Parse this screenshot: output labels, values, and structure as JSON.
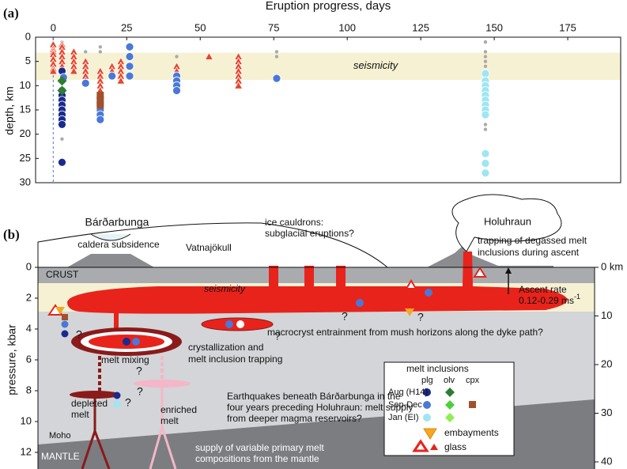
{
  "chart_data": {
    "type": "scatter",
    "panel_label": "(a)",
    "x_label": "Eruption progress, days",
    "y_label": "depth, km",
    "xlim": [
      -6,
      193
    ],
    "xticks": [
      0,
      25,
      50,
      75,
      100,
      125,
      150,
      175
    ],
    "ylim": [
      0,
      30
    ],
    "invert_y": true,
    "yticks": [
      0,
      5,
      10,
      15,
      20,
      25,
      30
    ],
    "band": {
      "label": "seismicity",
      "range": [
        3.2,
        8.8
      ],
      "color": "#f5f1d2"
    },
    "series": [
      {
        "marker": "dot",
        "color": "#aaaaaa",
        "x": [
          3,
          3,
          3,
          11,
          16,
          16,
          42,
          76,
          76,
          147,
          147,
          147,
          147,
          147,
          147,
          147,
          147,
          147,
          147,
          3
        ],
        "values": [
          1,
          2,
          3,
          3,
          2,
          3,
          4,
          3,
          4,
          1,
          3,
          4,
          5,
          6,
          8,
          13,
          15,
          18,
          19,
          21
        ]
      },
      {
        "marker": "triangle",
        "color": "#e8452c",
        "x": [
          0,
          0,
          0,
          0,
          0,
          0,
          0,
          0,
          3,
          3,
          3,
          3,
          3,
          3,
          7,
          7,
          7,
          7,
          7,
          11,
          11,
          11,
          11,
          11,
          16,
          16,
          16,
          16,
          16,
          20,
          20,
          20,
          23,
          23,
          23,
          23,
          23,
          42,
          42,
          53,
          63,
          63,
          63,
          63,
          63,
          63,
          63
        ],
        "values": [
          1.5,
          2.5,
          3,
          3.5,
          4.5,
          5.5,
          6.5,
          7,
          1.5,
          2,
          3,
          4,
          5,
          6,
          3,
          4,
          5,
          6,
          7,
          5,
          6,
          7,
          8,
          9,
          7,
          8,
          9,
          10,
          11,
          6,
          7,
          8,
          5,
          6,
          7,
          8,
          9,
          6,
          7,
          4,
          4,
          5,
          6,
          7,
          8,
          9,
          10
        ]
      },
      {
        "marker": "circle",
        "color": "#1a2a8c",
        "x": [
          3,
          3,
          3,
          3,
          3,
          3,
          3,
          3,
          3,
          3
        ],
        "values": [
          7,
          11,
          12,
          13,
          14,
          15,
          16,
          17,
          18,
          25.8
        ]
      },
      {
        "marker": "circle",
        "color": "#4a78d8",
        "x": [
          3.5,
          11,
          16,
          16,
          16,
          16,
          20,
          26,
          26,
          26,
          26,
          42,
          42,
          42,
          42,
          76
        ],
        "values": [
          8.3,
          9.5,
          14,
          15,
          16,
          17,
          8,
          2,
          4,
          6,
          8,
          8,
          9,
          10,
          11,
          8.5
        ]
      },
      {
        "marker": "circle",
        "color": "#9ee6f2",
        "x": [
          147,
          147,
          147,
          147,
          147,
          147,
          147,
          147,
          147,
          147,
          147,
          147
        ],
        "values": [
          7.5,
          9,
          10,
          11,
          12,
          13,
          14,
          15,
          16,
          24,
          26,
          28
        ]
      },
      {
        "marker": "diamond",
        "color": "#2e7d32",
        "x": [
          3,
          3
        ],
        "values": [
          9,
          11
        ]
      },
      {
        "marker": "square",
        "color": "#a0522d",
        "x": [
          16,
          16,
          16
        ],
        "values": [
          12,
          13,
          14
        ]
      }
    ]
  },
  "diagram": {
    "panel_label": "(b)",
    "left_axis": {
      "title": "pressure, kbar",
      "ticks": [
        0,
        2,
        4,
        6,
        8,
        10,
        12
      ]
    },
    "right_axis": {
      "ticks": [
        {
          "value": 0,
          "label": "0 km"
        },
        10,
        20,
        30,
        40
      ]
    },
    "labels": {
      "volcano": "Bárðarbunga",
      "caldera": "caldera subsidence",
      "glacier": "Vatnajökull",
      "cauldrons": [
        "ice cauldrons:",
        "subglacial eruptions?"
      ],
      "vent": "Holuhraun",
      "trapping": [
        "trapping of degassed melt",
        "inclusions during ascent"
      ],
      "crust": "CRUST",
      "seismicity": "seismicity",
      "ascent": [
        "Ascent rate",
        "0.12-0.29 ms",
        "-1"
      ],
      "entrainment": "macrocryst entrainment from mush horizons along the dyke path?",
      "crystallization": [
        "crystallization and",
        "melt inclusion trapping"
      ],
      "mixing": "melt mixing",
      "depleted": [
        "depleted",
        "melt"
      ],
      "enriched": [
        "enriched",
        "melt"
      ],
      "earthquakes": [
        "Earthquakes beneath Bárðarbunga in the",
        "four years preceding Holuhraun: melt supply",
        "from deeper magma reservoirs?"
      ],
      "moho": "Moho",
      "mantle": "MANTLE",
      "supply": [
        "supply of variable primary melt",
        "compositions from the mantle"
      ]
    },
    "question_marks": [
      "?",
      "?",
      "?",
      "?",
      "?",
      "?",
      "?"
    ],
    "legend": {
      "title": "melt inclusions",
      "columns": [
        "plg",
        "olv",
        "cpx"
      ],
      "rows": [
        "Aug (H14)",
        "Sep-Dec",
        "Jan (EI)"
      ],
      "embayments": "embayments",
      "glass": "glass"
    }
  }
}
